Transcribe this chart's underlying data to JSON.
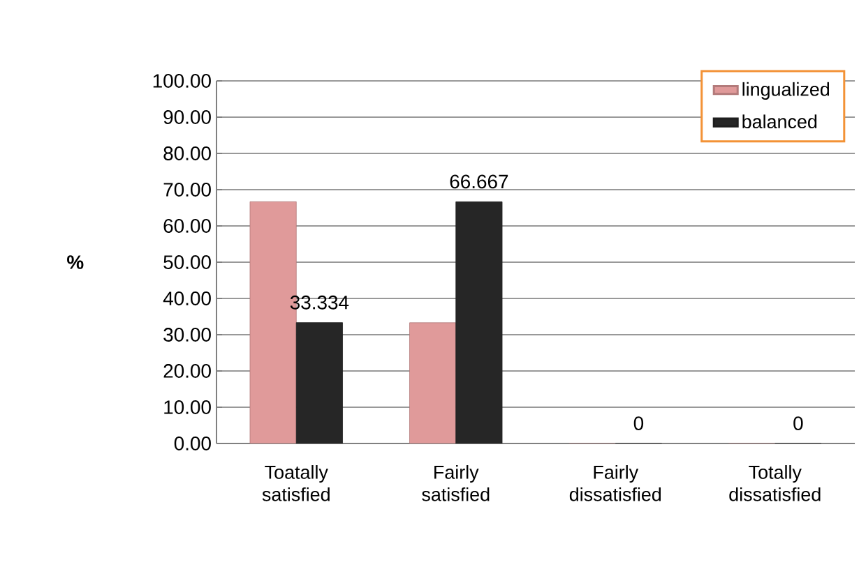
{
  "chart_data": {
    "type": "bar",
    "ylabel": "%",
    "categories": [
      "Toatally satisfied",
      "Fairly satisfied",
      "Fairly dissatisfied",
      "Totally dissatisfied"
    ],
    "series": [
      {
        "name": "lingualized",
        "color": "#e09a9a",
        "values": [
          66.7,
          33.3,
          0,
          0
        ]
      },
      {
        "name": "balanced",
        "color": "#262626",
        "values": [
          33.334,
          66.667,
          0,
          0
        ],
        "value_labels": [
          "33.334",
          "66.667",
          "0",
          "0"
        ]
      }
    ],
    "ylim": [
      0,
      100
    ],
    "yticks": [
      {
        "value": 0,
        "label": "0.00"
      },
      {
        "value": 10,
        "label": "10.00"
      },
      {
        "value": 20,
        "label": "20.00"
      },
      {
        "value": 30,
        "label": "30.00"
      },
      {
        "value": 40,
        "label": "40.00"
      },
      {
        "value": 50,
        "label": "50.00"
      },
      {
        "value": 60,
        "label": "60.00"
      },
      {
        "value": 70,
        "label": "70.00"
      },
      {
        "value": 80,
        "label": "80.00"
      },
      {
        "value": 90,
        "label": "90.00"
      },
      {
        "value": 100,
        "label": "100.00"
      }
    ],
    "grid": "y",
    "legend": "top right"
  }
}
